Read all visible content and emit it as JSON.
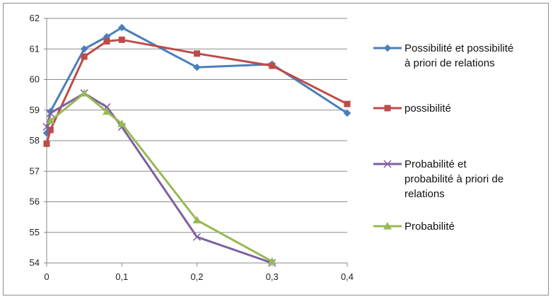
{
  "chart_data": {
    "type": "line",
    "title": "",
    "xlabel": "",
    "ylabel": "",
    "xlim": [
      0,
      0.4
    ],
    "ylim": [
      54,
      62
    ],
    "grid": true,
    "legend_position": "right",
    "x_ticks": [
      "0",
      "0,1",
      "0,2",
      "0,3",
      "0,4"
    ],
    "y_ticks": [
      "54",
      "55",
      "56",
      "57",
      "58",
      "59",
      "60",
      "61",
      "62"
    ],
    "series": [
      {
        "name": "Possibilité et possibilité à priori de relations",
        "color": "#4a7ebb",
        "marker": "diamond",
        "points": [
          [
            0,
            58.25
          ],
          [
            0.005,
            58.95
          ],
          [
            0.05,
            61.0
          ],
          [
            0.08,
            61.4
          ],
          [
            0.1,
            61.7
          ],
          [
            0.2,
            60.4
          ],
          [
            0.3,
            60.5
          ],
          [
            0.4,
            58.9
          ]
        ]
      },
      {
        "name": "possibilité",
        "color": "#be4b48",
        "marker": "square",
        "points": [
          [
            0,
            57.9
          ],
          [
            0.005,
            58.35
          ],
          [
            0.05,
            60.75
          ],
          [
            0.08,
            61.25
          ],
          [
            0.1,
            61.3
          ],
          [
            0.2,
            60.85
          ],
          [
            0.3,
            60.45
          ],
          [
            0.4,
            59.2
          ]
        ]
      },
      {
        "name": "Probabilité et probabilité à priori de relations",
        "color": "#7d60a0",
        "marker": "x",
        "points": [
          [
            0,
            58.45
          ],
          [
            0.005,
            58.9
          ],
          [
            0.05,
            59.55
          ],
          [
            0.08,
            59.1
          ],
          [
            0.1,
            58.45
          ],
          [
            0.2,
            54.85
          ],
          [
            0.3,
            54.0
          ]
        ]
      },
      {
        "name": "Probabilité",
        "color": "#98b954",
        "marker": "triangle",
        "points": [
          [
            0.005,
            58.65
          ],
          [
            0.05,
            59.55
          ],
          [
            0.08,
            58.95
          ],
          [
            0.1,
            58.55
          ],
          [
            0.2,
            55.4
          ],
          [
            0.3,
            54.05
          ]
        ]
      }
    ]
  }
}
